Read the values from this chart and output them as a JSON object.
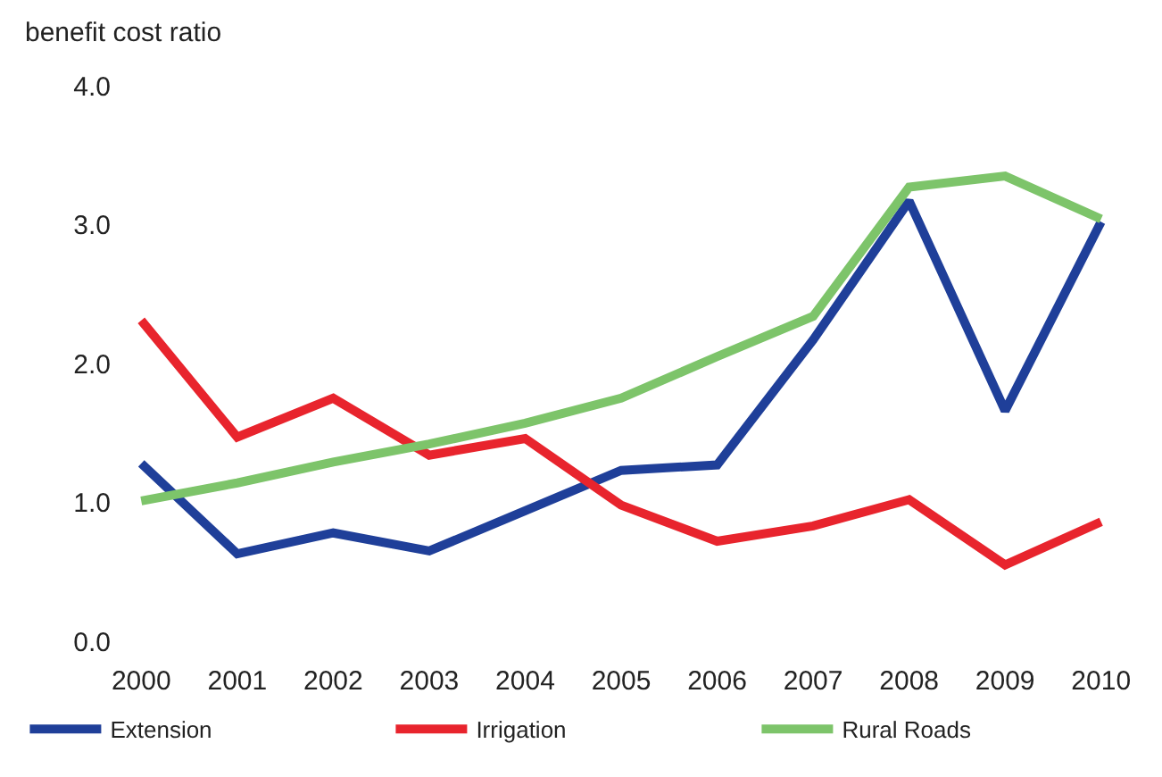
{
  "chart_data": {
    "type": "line",
    "ylabel": "benefit cost ratio",
    "categories": [
      "2000",
      "2001",
      "2002",
      "2003",
      "2004",
      "2005",
      "2006",
      "2007",
      "2008",
      "2009",
      "2010"
    ],
    "series": [
      {
        "name": "Extension",
        "color": "#1f3f99",
        "values": [
          1.28,
          0.63,
          0.78,
          0.65,
          0.94,
          1.23,
          1.27,
          2.17,
          3.17,
          1.66,
          3.02
        ]
      },
      {
        "name": "Irrigation",
        "color": "#e8242d",
        "values": [
          2.31,
          1.47,
          1.75,
          1.34,
          1.46,
          0.98,
          0.72,
          0.83,
          1.02,
          0.55,
          0.86
        ]
      },
      {
        "name": "Rural Roads",
        "color": "#7dc46a",
        "values": [
          1.01,
          1.14,
          1.29,
          1.42,
          1.57,
          1.75,
          2.05,
          2.34,
          3.27,
          3.35,
          3.04
        ]
      }
    ],
    "ylim": [
      0,
      4
    ],
    "yticks": [
      {
        "value": 0,
        "label": "0.0"
      },
      {
        "value": 1,
        "label": "1.0"
      },
      {
        "value": 2,
        "label": "2.0"
      },
      {
        "value": 3,
        "label": "3.0"
      },
      {
        "value": 4,
        "label": "4.0"
      }
    ],
    "legend": "bottom",
    "marker": "none",
    "line_style": "solid"
  }
}
